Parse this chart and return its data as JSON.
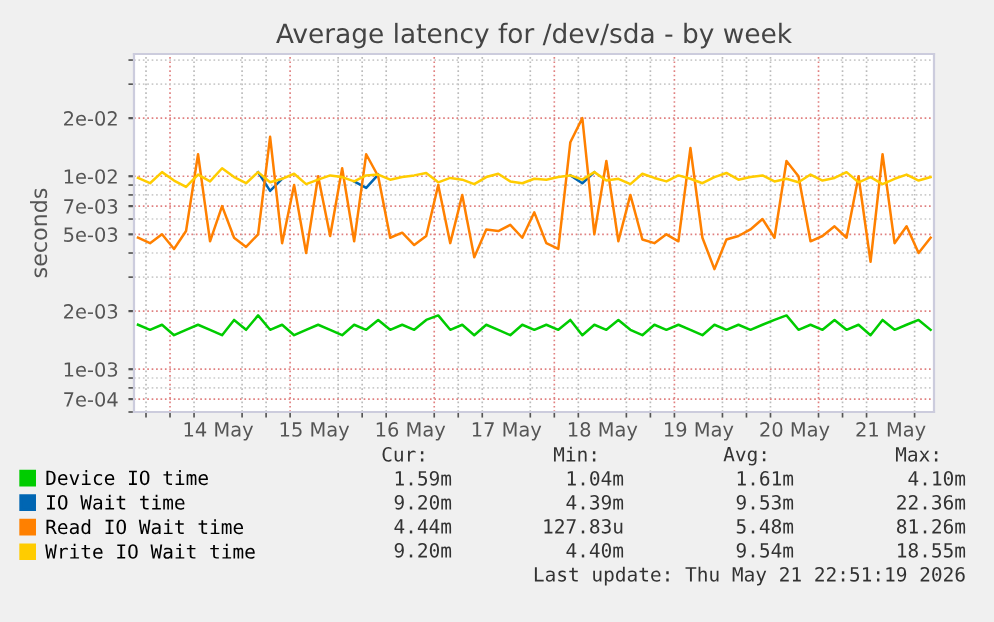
{
  "chart_data": {
    "type": "line",
    "title": "Average latency for /dev/sda - by week",
    "ylabel": "seconds",
    "log": "y",
    "grid": true,
    "legend": "bottom left",
    "marker": "none",
    "line_style": "solid",
    "xlim": [
      "2026-05-13T15:00",
      "2026-05-21T22:51"
    ],
    "xticks": [
      {
        "value": "2026-05-14T12:00",
        "label": "14 May"
      },
      {
        "value": "2026-05-15T12:00",
        "label": "15 May"
      },
      {
        "value": "2026-05-16T12:00",
        "label": "16 May"
      },
      {
        "value": "2026-05-17T12:00",
        "label": "17 May"
      },
      {
        "value": "2026-05-18T12:00",
        "label": "18 May"
      },
      {
        "value": "2026-05-19T12:00",
        "label": "19 May"
      },
      {
        "value": "2026-05-20T12:00",
        "label": "20 May"
      },
      {
        "value": "2026-05-21T12:00",
        "label": "21 May"
      }
    ],
    "ylim": [
      0.0006,
      0.043
    ],
    "yticks": [
      {
        "value": 0.0007,
        "label": "7e-04"
      },
      {
        "value": 0.001,
        "label": "1e-03"
      },
      {
        "value": 0.002,
        "label": "2e-03"
      },
      {
        "value": 0.005,
        "label": "5e-03"
      },
      {
        "value": 0.007,
        "label": "7e-03"
      },
      {
        "value": 0.01,
        "label": "1e-02"
      },
      {
        "value": 0.02,
        "label": "2e-02"
      }
    ],
    "x": [
      "2026-05-13T16:00",
      "2026-05-13T19:00",
      "2026-05-13T22:00",
      "2026-05-14T01:00",
      "2026-05-14T04:00",
      "2026-05-14T07:00",
      "2026-05-14T10:00",
      "2026-05-14T13:00",
      "2026-05-14T16:00",
      "2026-05-14T19:00",
      "2026-05-14T22:00",
      "2026-05-15T01:00",
      "2026-05-15T04:00",
      "2026-05-15T07:00",
      "2026-05-15T10:00",
      "2026-05-15T13:00",
      "2026-05-15T16:00",
      "2026-05-15T19:00",
      "2026-05-15T22:00",
      "2026-05-16T01:00",
      "2026-05-16T04:00",
      "2026-05-16T07:00",
      "2026-05-16T10:00",
      "2026-05-16T13:00",
      "2026-05-16T16:00",
      "2026-05-16T19:00",
      "2026-05-16T22:00",
      "2026-05-17T01:00",
      "2026-05-17T04:00",
      "2026-05-17T07:00",
      "2026-05-17T10:00",
      "2026-05-17T13:00",
      "2026-05-17T16:00",
      "2026-05-17T19:00",
      "2026-05-17T22:00",
      "2026-05-18T01:00",
      "2026-05-18T04:00",
      "2026-05-18T07:00",
      "2026-05-18T10:00",
      "2026-05-18T13:00",
      "2026-05-18T16:00",
      "2026-05-18T19:00",
      "2026-05-18T22:00",
      "2026-05-19T01:00",
      "2026-05-19T04:00",
      "2026-05-19T07:00",
      "2026-05-19T10:00",
      "2026-05-19T13:00",
      "2026-05-19T16:00",
      "2026-05-19T19:00",
      "2026-05-19T22:00",
      "2026-05-20T01:00",
      "2026-05-20T04:00",
      "2026-05-20T07:00",
      "2026-05-20T10:00",
      "2026-05-20T13:00",
      "2026-05-20T16:00",
      "2026-05-20T19:00",
      "2026-05-20T22:00",
      "2026-05-21T01:00",
      "2026-05-21T04:00",
      "2026-05-21T07:00",
      "2026-05-21T10:00",
      "2026-05-21T13:00",
      "2026-05-21T16:00",
      "2026-05-21T19:00",
      "2026-05-21T22:00"
    ],
    "series": [
      {
        "name": "Device IO time",
        "color": "#00cc00",
        "values": [
          0.0017,
          0.0016,
          0.0017,
          0.0015,
          0.0016,
          0.0017,
          0.0016,
          0.0015,
          0.0018,
          0.0016,
          0.0019,
          0.0016,
          0.0017,
          0.0015,
          0.0016,
          0.0017,
          0.0016,
          0.0015,
          0.0017,
          0.0016,
          0.0018,
          0.0016,
          0.0017,
          0.0016,
          0.0018,
          0.0019,
          0.0016,
          0.0017,
          0.0015,
          0.0017,
          0.0016,
          0.0015,
          0.0017,
          0.0016,
          0.0017,
          0.0016,
          0.0018,
          0.0015,
          0.0017,
          0.0016,
          0.0018,
          0.0016,
          0.0015,
          0.0017,
          0.0016,
          0.0017,
          0.0016,
          0.0015,
          0.0017,
          0.0016,
          0.0017,
          0.0016,
          0.0017,
          0.0018,
          0.0019,
          0.0016,
          0.0017,
          0.0016,
          0.0018,
          0.0016,
          0.0017,
          0.0015,
          0.0018,
          0.0016,
          0.0017,
          0.0018,
          0.0016
        ]
      },
      {
        "name": "IO Wait time",
        "color": "#0066b3",
        "values": [
          null,
          null,
          null,
          null,
          null,
          null,
          null,
          null,
          null,
          null,
          0.0105,
          0.0084,
          0.0097,
          null,
          null,
          null,
          null,
          null,
          0.0094,
          0.0087,
          0.0102,
          null,
          null,
          null,
          null,
          null,
          null,
          null,
          null,
          null,
          null,
          null,
          null,
          null,
          null,
          null,
          0.0101,
          0.0092,
          0.0105,
          null,
          null,
          null,
          null,
          null,
          null,
          null,
          null,
          null,
          null,
          null,
          null,
          null,
          null,
          null,
          null,
          null,
          null,
          null,
          null,
          null,
          null,
          null,
          null,
          null,
          null,
          null,
          null
        ]
      },
      {
        "name": "Read IO Wait time",
        "color": "#ff8000",
        "values": [
          0.0048,
          0.0045,
          0.005,
          0.0042,
          0.0052,
          0.013,
          0.0046,
          0.007,
          0.0048,
          0.0043,
          0.005,
          0.016,
          0.0045,
          0.009,
          0.004,
          0.01,
          0.0049,
          0.011,
          0.0046,
          0.013,
          0.01,
          0.0048,
          0.0051,
          0.0044,
          0.0049,
          0.009,
          0.0045,
          0.008,
          0.0038,
          0.0053,
          0.0052,
          0.0056,
          0.0048,
          0.0065,
          0.0045,
          0.0042,
          0.015,
          0.02,
          0.005,
          0.012,
          0.0046,
          0.008,
          0.0047,
          0.0045,
          0.005,
          0.0046,
          0.014,
          0.0048,
          0.0033,
          0.0047,
          0.0049,
          0.0053,
          0.006,
          0.0048,
          0.012,
          0.01,
          0.0046,
          0.0049,
          0.0055,
          0.0048,
          0.01,
          0.0036,
          0.013,
          0.0045,
          0.0055,
          0.004,
          0.0048
        ]
      },
      {
        "name": "Write IO Wait time",
        "color": "#ffcc00",
        "values": [
          0.0098,
          0.0092,
          0.0105,
          0.0095,
          0.0088,
          0.0102,
          0.0094,
          0.011,
          0.0099,
          0.0092,
          0.0105,
          0.0093,
          0.0097,
          0.0103,
          0.0091,
          0.0096,
          0.0101,
          0.0099,
          0.0094,
          0.0101,
          0.0102,
          0.0096,
          0.0099,
          0.0101,
          0.0104,
          0.0093,
          0.0098,
          0.0096,
          0.0091,
          0.0099,
          0.0103,
          0.0094,
          0.0092,
          0.0097,
          0.0096,
          0.0099,
          0.0101,
          0.0096,
          0.0105,
          0.0095,
          0.0097,
          0.0091,
          0.0103,
          0.0098,
          0.0094,
          0.0101,
          0.0097,
          0.0092,
          0.0099,
          0.0104,
          0.0096,
          0.0099,
          0.0101,
          0.0094,
          0.0097,
          0.0093,
          0.0102,
          0.0095,
          0.0098,
          0.0105,
          0.0093,
          0.0099,
          0.0091,
          0.0097,
          0.0102,
          0.0095,
          0.0099
        ]
      }
    ],
    "annotations": [
      "Cur:",
      "Min:",
      "Avg:",
      "Max:",
      "1.59m",
      "1.04m",
      "1.61m",
      "4.10m",
      "9.20m",
      "4.39m",
      "9.53m",
      "22.36m",
      "4.44m",
      "127.83u",
      "5.48m",
      "81.26m",
      "9.20m",
      "4.40m",
      "9.54m",
      "18.55m",
      "Last update: Thu May 21 22:51:19 2026"
    ]
  }
}
